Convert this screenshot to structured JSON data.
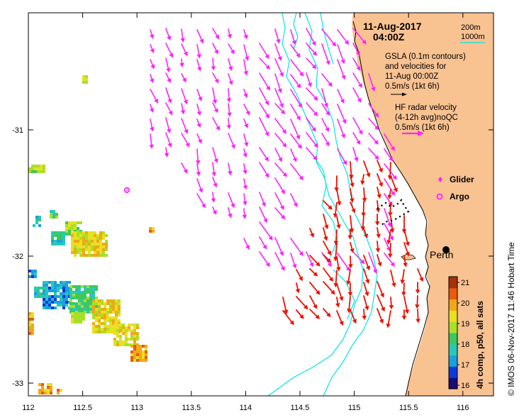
{
  "map": {
    "date_label": "11-Aug-2017",
    "time_label": "04:00Z",
    "contour_legend": [
      {
        "label": "200m",
        "color": "#000000"
      },
      {
        "label": "1000m",
        "color": "#00e5e5"
      }
    ],
    "gsla_legend": [
      "GSLA (0.1m contours)",
      "and velocities for",
      "11-Aug 00:00Z",
      "0.5m/s (1kt 6h)"
    ],
    "hf_legend": [
      "HF radar velocity",
      "(4-12h avg)noQC",
      "0.5m/s (1kt 6h)"
    ],
    "glider_label": "Glider",
    "argo_label": "Argo",
    "city_label": "Perth",
    "x_ticks": [
      "112",
      "112.5",
      "113",
      "113.5",
      "114",
      "114.5",
      "115",
      "115.5",
      "116"
    ],
    "y_ticks": [
      "-31",
      "-32",
      "-33"
    ],
    "colorbar": {
      "label": "4h comp, p50, all sats",
      "ticks": [
        "21",
        "20",
        "19",
        "18",
        "17",
        "16"
      ],
      "colors": [
        "#1a0a7a",
        "#0a3ad8",
        "#1aa0e0",
        "#28c8b8",
        "#3cc860",
        "#a8e028",
        "#e8e020",
        "#f0a818",
        "#e85a10",
        "#a8300a"
      ]
    },
    "credit": "© IMOS 06-Nov-2017 11:46 Hobart Time",
    "colors": {
      "land": "#f9c291",
      "hf_arrow": "#ff22ff",
      "obs_arrow": "#ee1100",
      "isobath": "#00e5e5"
    }
  }
}
